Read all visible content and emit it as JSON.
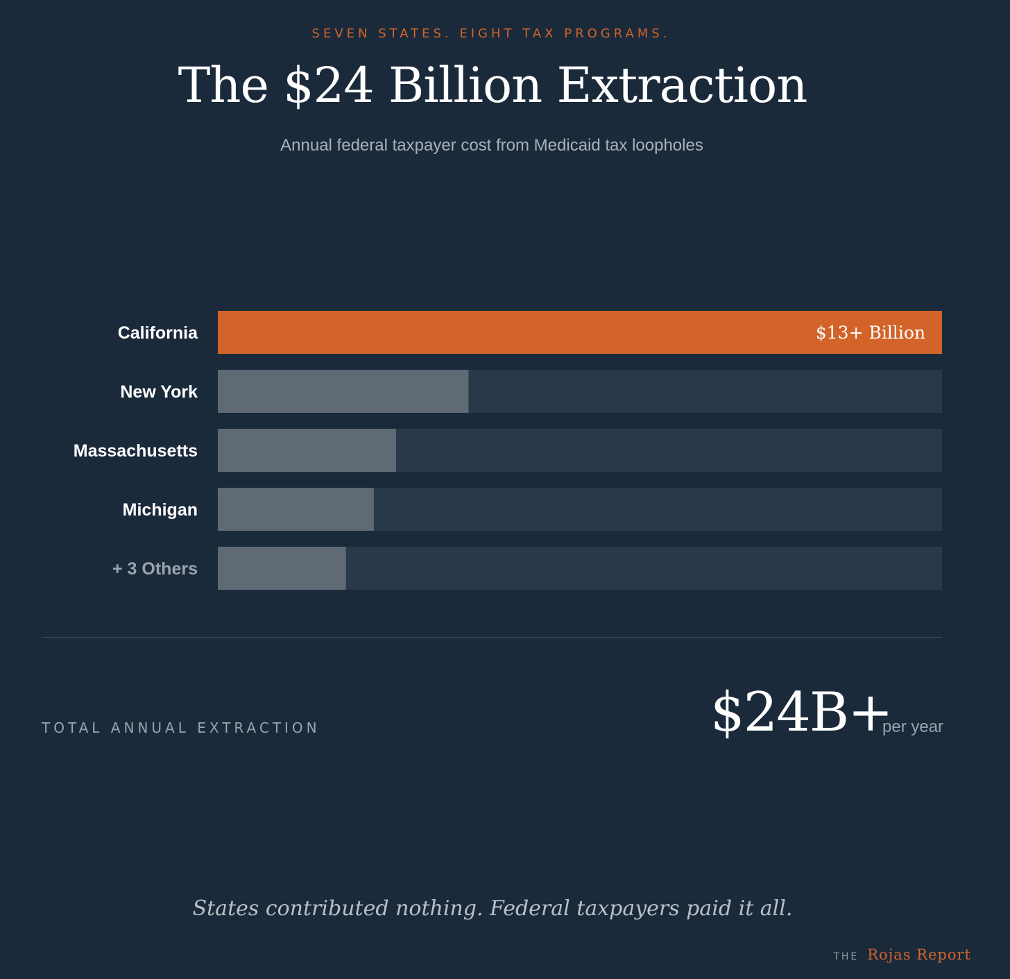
{
  "kicker": "SEVEN STATES. EIGHT TAX PROGRAMS.",
  "title": "The $24 Billion Extraction",
  "subtitle": "Annual federal taxpayer cost from Medicaid tax loopholes",
  "chart_data": {
    "type": "bar",
    "orientation": "horizontal",
    "categories": [
      "California",
      "New York",
      "Massachusetts",
      "Michigan",
      "+ 3 Others"
    ],
    "values": [
      13,
      4.5,
      3.2,
      2.8,
      2.3
    ],
    "max": 13,
    "data_labels": [
      "$13+ Billion",
      "",
      "",
      "",
      ""
    ],
    "colors": {
      "highlight": "#d2642a",
      "bar": "#5f6a74",
      "track": "#29394a",
      "label": "#ffffff",
      "label_muted": "#9aa3ad"
    },
    "muted_categories": [
      "+ 3 Others"
    ],
    "grid": false,
    "legend": "none"
  },
  "total": {
    "label": "TOTAL ANNUAL EXTRACTION",
    "value": "$24B+",
    "unit": "per year"
  },
  "footer": {
    "quote": "States contributed nothing. Federal taxpayers paid it all.",
    "brand_prefix": "THE",
    "brand_name": "Rojas Report"
  }
}
